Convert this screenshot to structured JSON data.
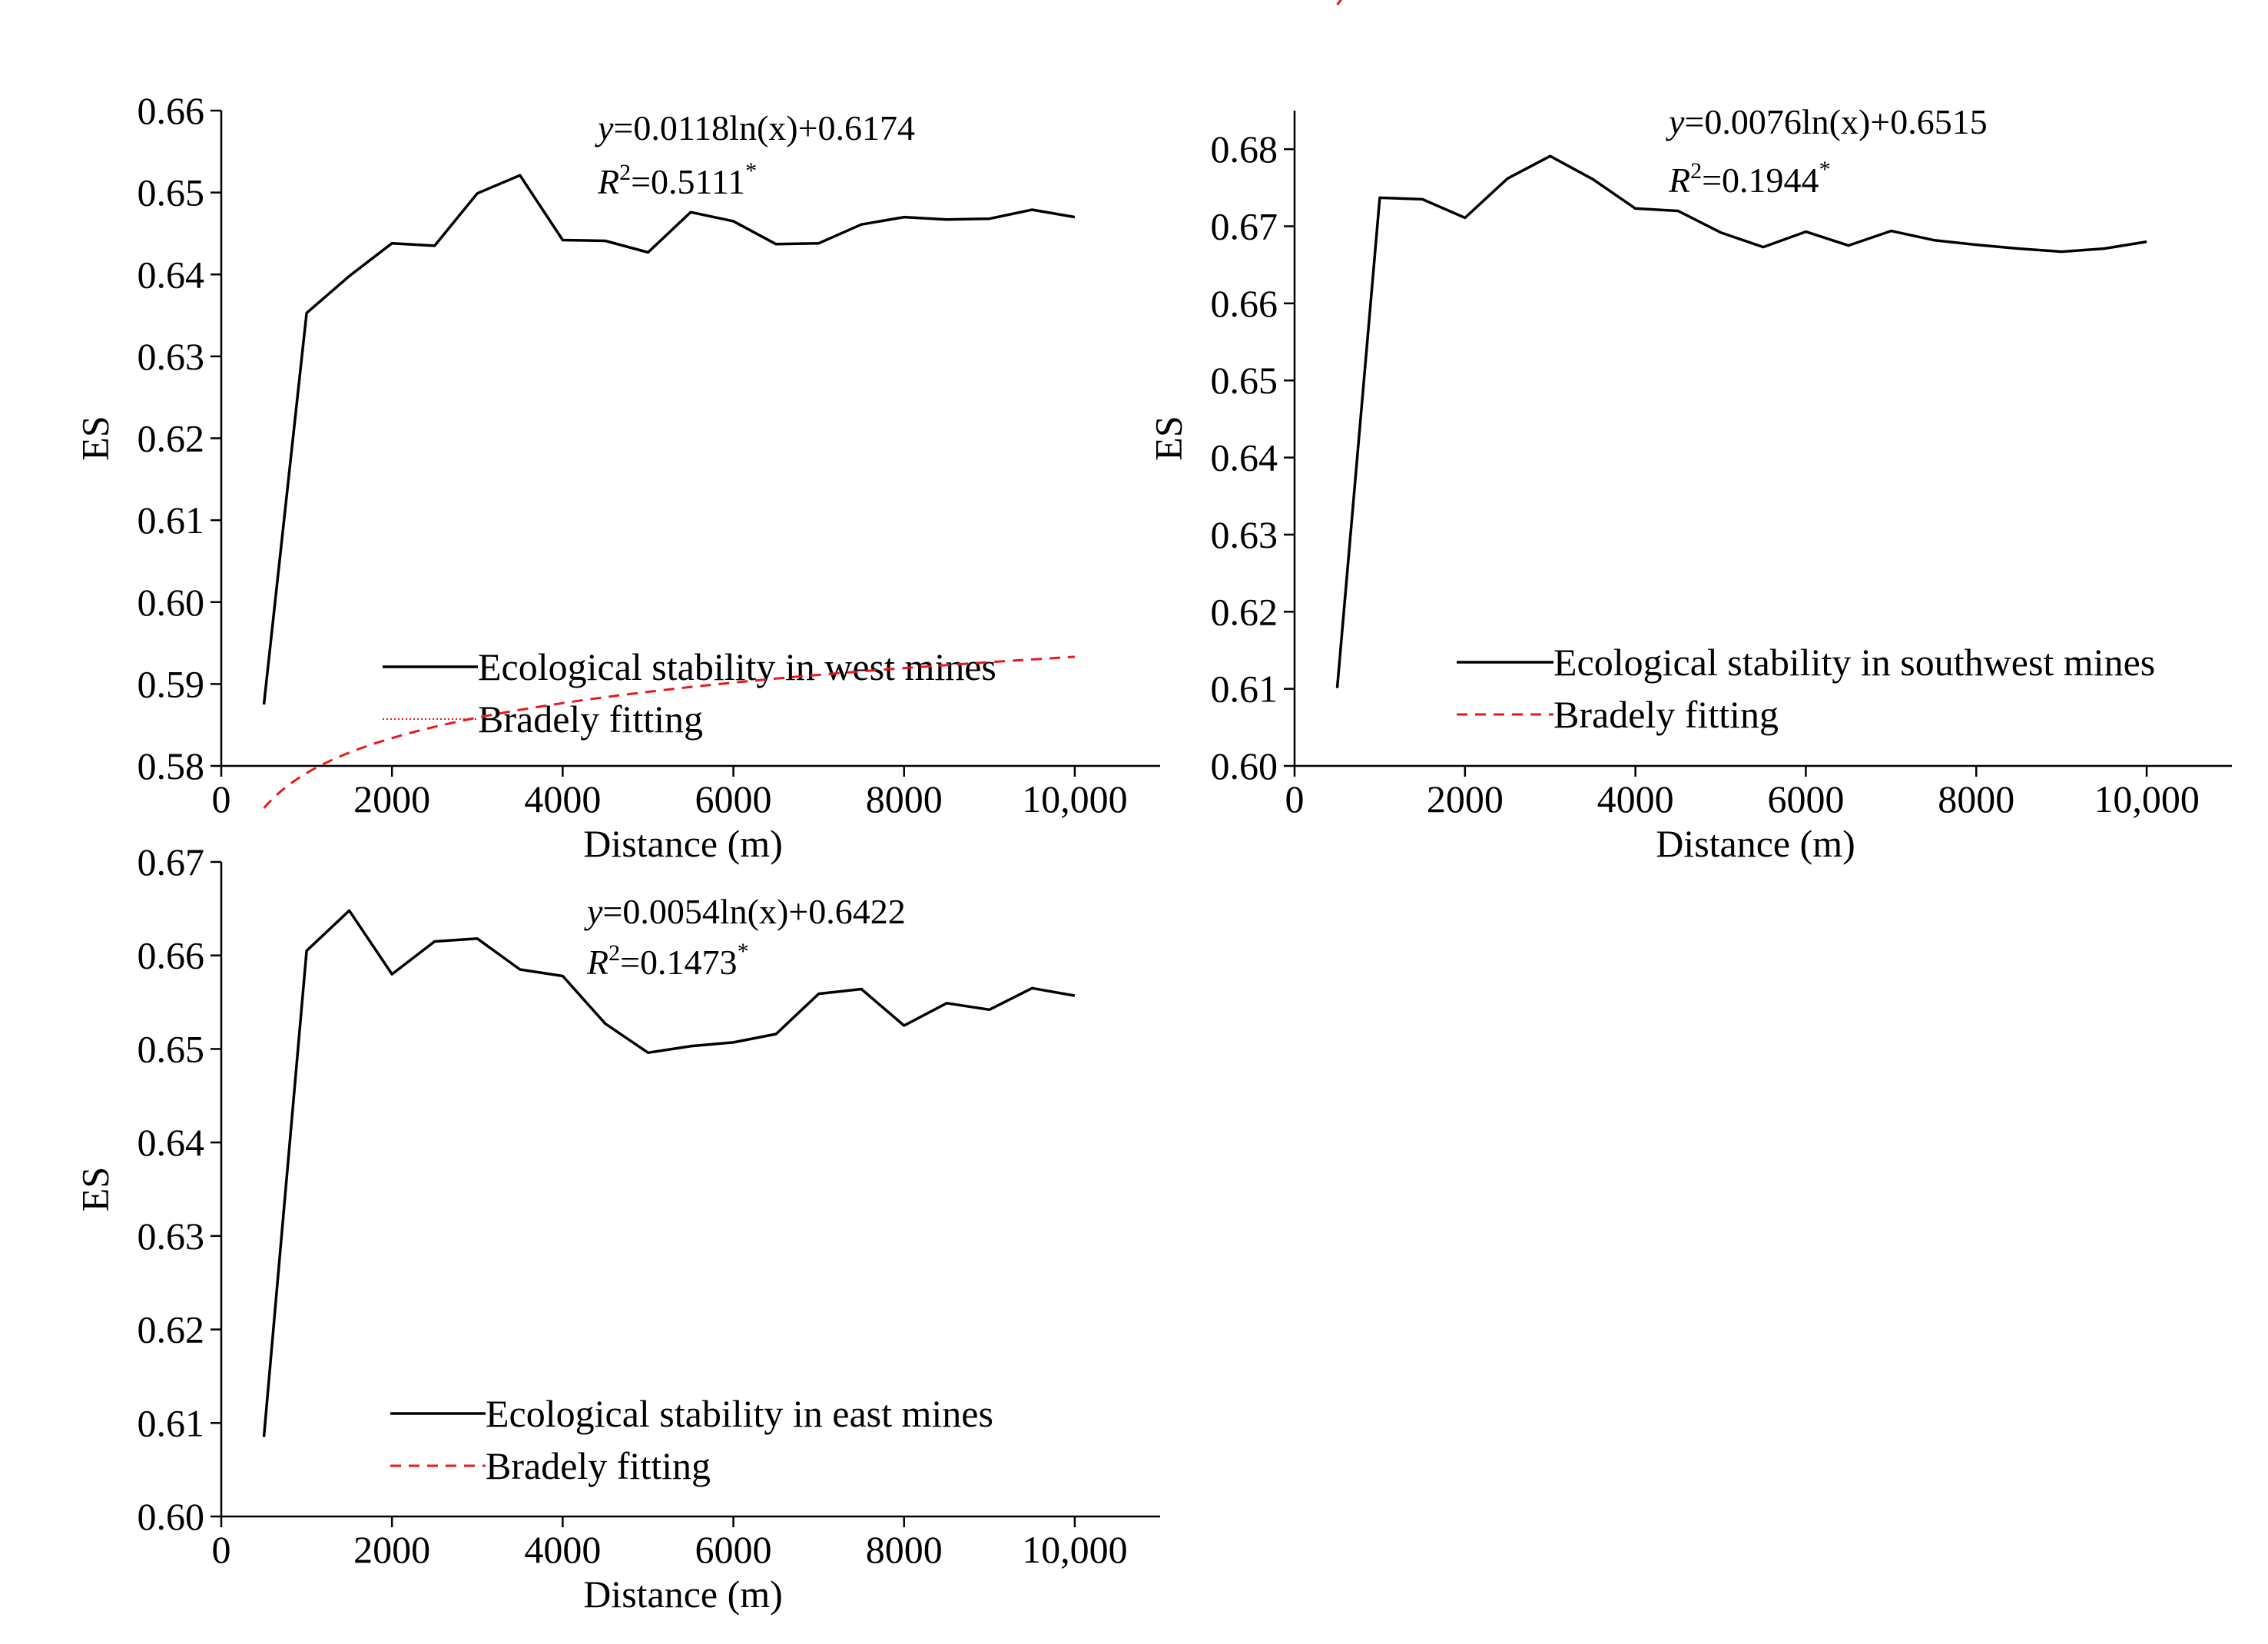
{
  "chart_data": [
    {
      "type": "line",
      "xlabel": "Distance (m)",
      "ylabel": "ES",
      "xlim": [
        0,
        11000
      ],
      "ylim": [
        0.58,
        0.66
      ],
      "xticks": [
        0,
        2000,
        4000,
        6000,
        8000,
        10000
      ],
      "xtick_labels": [
        "0",
        "2000",
        "4000",
        "6000",
        "8000",
        "10,000"
      ],
      "yticks": [
        0.58,
        0.59,
        0.6,
        0.61,
        0.62,
        0.63,
        0.64,
        0.65,
        0.66
      ],
      "ytick_labels": [
        "0.58",
        "0.59",
        "0.60",
        "0.61",
        "0.62",
        "0.63",
        "0.64",
        "0.65",
        "0.66"
      ],
      "x": [
        500,
        1000,
        1500,
        2000,
        2500,
        3000,
        3500,
        4000,
        4500,
        5000,
        5500,
        6000,
        6500,
        7000,
        7500,
        8000,
        8500,
        9000,
        9500,
        10000
      ],
      "series": [
        {
          "name": "Ecological stability in west mines",
          "values": [
            0.5875,
            0.6353,
            0.6398,
            0.6438,
            0.6435,
            0.6499,
            0.6521,
            0.6442,
            0.6441,
            0.6427,
            0.6476,
            0.6465,
            0.6437,
            0.6438,
            0.6461,
            0.647,
            0.6467,
            0.6468,
            0.6479,
            0.647
          ]
        },
        {
          "name": "Bradely fitting",
          "fit": {
            "a": 0.0118,
            "b": 0.6174
          },
          "style": "dotted"
        }
      ],
      "equation": {
        "y_var": "y",
        "y_rest": "=0.0118ln(x)+0.6174",
        "r_var": "R",
        "r_sup": "2",
        "r_rest": "=0.5111",
        "star": "*"
      },
      "colors": {
        "data": "#000000",
        "fit": "#e8191c"
      }
    },
    {
      "type": "line",
      "xlabel": "Distance (m)",
      "ylabel": "ES",
      "xlim": [
        0,
        11000
      ],
      "ylim": [
        0.6,
        0.685
      ],
      "xticks": [
        0,
        2000,
        4000,
        6000,
        8000,
        10000
      ],
      "xtick_labels": [
        "0",
        "2000",
        "4000",
        "6000",
        "8000",
        "10,000"
      ],
      "yticks": [
        0.6,
        0.61,
        0.62,
        0.63,
        0.64,
        0.65,
        0.66,
        0.67,
        0.68
      ],
      "ytick_labels": [
        "0.60",
        "0.61",
        "0.62",
        "0.63",
        "0.64",
        "0.65",
        "0.66",
        "0.67",
        "0.68"
      ],
      "x": [
        500,
        1000,
        1500,
        2000,
        2500,
        3000,
        3500,
        4000,
        4500,
        5000,
        5500,
        6000,
        6500,
        7000,
        7500,
        8000,
        8500,
        9000,
        9500,
        10000
      ],
      "series": [
        {
          "name": "Ecological stability in southwest mines",
          "values": [
            0.6101,
            0.6737,
            0.6735,
            0.6711,
            0.6762,
            0.6791,
            0.6761,
            0.6723,
            0.672,
            0.6692,
            0.6673,
            0.6693,
            0.6675,
            0.6694,
            0.6682,
            0.6676,
            0.6671,
            0.6667,
            0.6671,
            0.668
          ]
        },
        {
          "name": "Bradely fitting",
          "fit": {
            "a": 0.0076,
            "b": 0.6515
          },
          "style": "dashed"
        }
      ],
      "equation": {
        "y_var": "y",
        "y_rest": "=0.0076ln(x)+0.6515",
        "r_var": "R",
        "r_sup": "2",
        "r_rest": "=0.1944",
        "star": "*"
      },
      "colors": {
        "data": "#000000",
        "fit": "#e8191c"
      }
    },
    {
      "type": "line",
      "xlabel": "Distance (m)",
      "ylabel": "ES",
      "xlim": [
        0,
        11000
      ],
      "ylim": [
        0.6,
        0.67
      ],
      "xticks": [
        0,
        2000,
        4000,
        6000,
        8000,
        10000
      ],
      "xtick_labels": [
        "0",
        "2000",
        "4000",
        "6000",
        "8000",
        "10,000"
      ],
      "yticks": [
        0.6,
        0.61,
        0.62,
        0.63,
        0.64,
        0.65,
        0.66,
        0.67
      ],
      "ytick_labels": [
        "0.60",
        "0.61",
        "0.62",
        "0.63",
        "0.64",
        "0.65",
        "0.66",
        "0.67"
      ],
      "x": [
        500,
        1000,
        1500,
        2000,
        2500,
        3000,
        3500,
        4000,
        4500,
        5000,
        5500,
        6000,
        6500,
        7000,
        7500,
        8000,
        8500,
        9000,
        9500,
        10000
      ],
      "series": [
        {
          "name": "Ecological stability in east mines",
          "values": [
            0.6085,
            0.6605,
            0.6648,
            0.658,
            0.6615,
            0.6618,
            0.6585,
            0.6578,
            0.6527,
            0.6496,
            0.6503,
            0.6507,
            0.6516,
            0.6559,
            0.6564,
            0.6525,
            0.6549,
            0.6542,
            0.6565,
            0.6557
          ]
        },
        {
          "name": "Bradely fitting",
          "fit": {
            "a": 0.0054,
            "b": 0.6422
          },
          "style": "dashed"
        }
      ],
      "equation": {
        "y_var": "y",
        "y_rest": "=0.0054ln(x)+0.6422",
        "r_var": "R",
        "r_sup": "2",
        "r_rest": "=0.1473",
        "star": "*"
      },
      "colors": {
        "data": "#000000",
        "fit": "#e8191c"
      }
    }
  ]
}
